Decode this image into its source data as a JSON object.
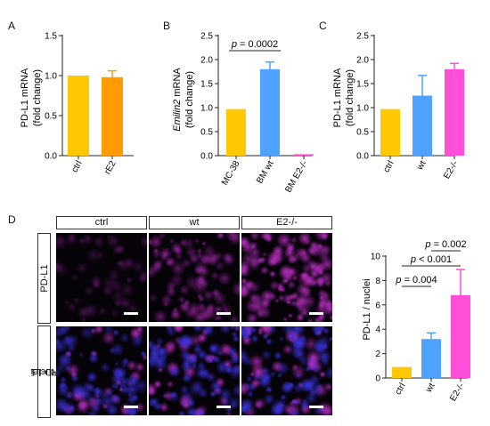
{
  "panels": {
    "a": {
      "letter": "A",
      "ylabel": [
        "PD-L1 mRNA",
        "(fold change)"
      ],
      "yticks": [
        "0.0",
        "0.5",
        "1.0",
        "1.5"
      ],
      "xticks": [
        "ctrl",
        "rE2"
      ]
    },
    "b": {
      "letter": "B",
      "ylabel": [
        "Emilin2 mRNA",
        "(fold change)"
      ],
      "yticks": [
        "0.0",
        "0.5",
        "1.0",
        "1.5",
        "2.0",
        "2.5"
      ],
      "xticks": [
        "MC-38",
        "BM wt",
        "BM E2-/-"
      ],
      "pvalue": "p = 0.0002"
    },
    "c": {
      "letter": "C",
      "ylabel": [
        "PD-L1 mRNA",
        "(fold change)"
      ],
      "yticks": [
        "0.0",
        "0.5",
        "1.0",
        "1.5",
        "2.0",
        "2.5"
      ],
      "xticks": [
        "ctrl",
        "wt",
        "E2-/-"
      ]
    },
    "d": {
      "letter": "D",
      "ylabel": "PD-L1 / nuclei",
      "yticks": [
        "0",
        "2",
        "4",
        "6",
        "8",
        "10"
      ],
      "xticks": [
        "ctrl",
        "wt",
        "E2-/-"
      ],
      "pvalues": [
        "p = 0.002",
        "p < 0.001",
        "p = 0.004"
      ],
      "column_headers": [
        "ctrl",
        "wt",
        "E2-/-"
      ],
      "row_labels": [
        "PD-L1",
        "Nuclei",
        "PD-L1"
      ]
    }
  },
  "colors": {
    "ctrl": "#FFC800",
    "rE2": "#FF9A00",
    "wt": "#4FA3FF",
    "e2ko": "#FF4FD8",
    "pdl1_stain": "#C030C8",
    "nuclei_stain": "#3A33E0"
  },
  "chart_data": [
    {
      "type": "bar",
      "categories": [
        "ctrl",
        "rE2"
      ],
      "values": [
        1.0,
        0.98
      ],
      "errors": [
        0,
        0.08
      ],
      "ylabel": "PD-L1 mRNA (fold change)",
      "ylim": [
        0,
        1.5
      ]
    },
    {
      "type": "bar",
      "categories": [
        "MC-38",
        "BM wt",
        "BM E2-/-"
      ],
      "values": [
        0.97,
        1.8,
        0.03
      ],
      "errors": [
        0,
        0.15,
        0
      ],
      "ylabel": "Emilin2 mRNA (fold change)",
      "ylim": [
        0,
        2.5
      ],
      "annotations": [
        {
          "text": "p = 0.0002",
          "between": [
            "MC-38",
            "BM wt"
          ]
        }
      ]
    },
    {
      "type": "bar",
      "categories": [
        "ctrl",
        "wt",
        "E2-/-"
      ],
      "values": [
        0.97,
        1.25,
        1.8
      ],
      "errors": [
        0,
        0.42,
        0.12
      ],
      "ylabel": "PD-L1 mRNA (fold change)",
      "ylim": [
        0,
        2.5
      ]
    },
    {
      "type": "bar",
      "categories": [
        "ctrl",
        "wt",
        "E2-/-"
      ],
      "values": [
        0.9,
        3.2,
        6.8
      ],
      "errors": [
        0,
        0.5,
        2.1
      ],
      "ylabel": "PD-L1 / nuclei",
      "ylim": [
        0,
        10
      ],
      "annotations": [
        {
          "text": "p = 0.002",
          "between": [
            "wt",
            "E2-/-"
          ]
        },
        {
          "text": "p < 0.001",
          "between": [
            "ctrl",
            "E2-/-"
          ]
        },
        {
          "text": "p = 0.004",
          "between": [
            "ctrl",
            "wt"
          ]
        }
      ]
    }
  ]
}
